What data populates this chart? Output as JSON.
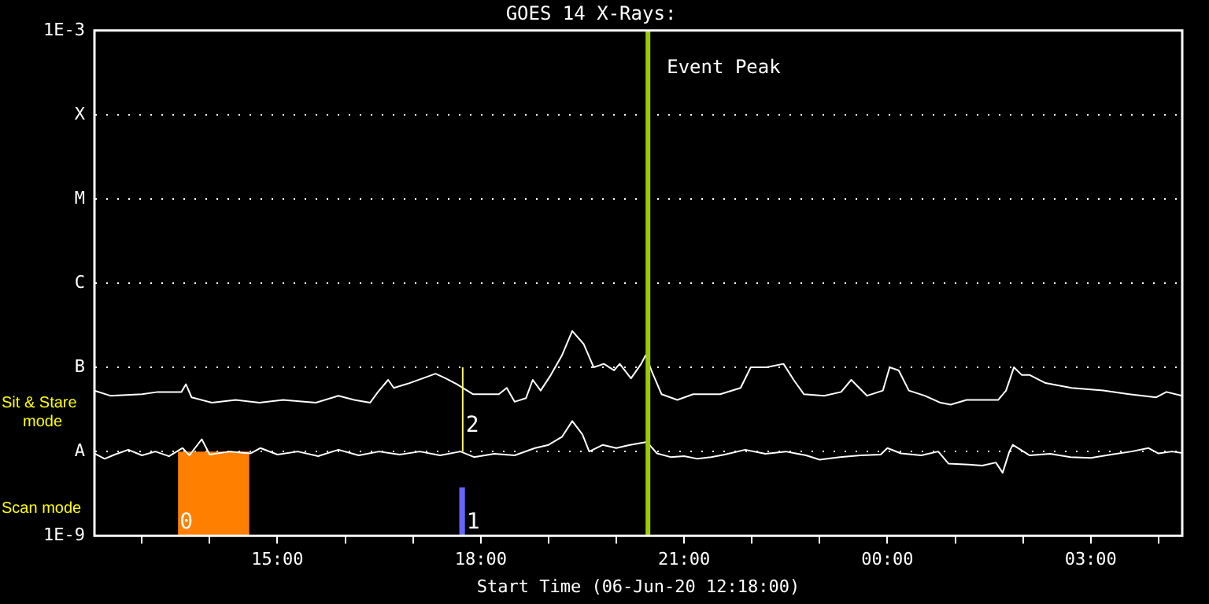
{
  "chart_data": {
    "type": "line",
    "title": "GOES 14 X-Rays:",
    "xlabel": "Start Time (06-Jun-20 12:18:00)",
    "xlim": [
      "--06-06T12:18",
      "--06-07T04:21"
    ],
    "xticks": [
      {
        "value": "--06-06T13:00",
        "label": null
      },
      {
        "value": "--06-06T14:00",
        "label": null
      },
      {
        "value": "--06-06T15:00",
        "label": "15:00"
      },
      {
        "value": "--06-06T16:00",
        "label": null
      },
      {
        "value": "--06-06T17:00",
        "label": null
      },
      {
        "value": "--06-06T18:00",
        "label": "18:00"
      },
      {
        "value": "--06-06T19:00",
        "label": null
      },
      {
        "value": "--06-06T20:00",
        "label": null
      },
      {
        "value": "--06-06T21:00",
        "label": "21:00"
      },
      {
        "value": "--06-06T22:00",
        "label": null
      },
      {
        "value": "--06-06T23:00",
        "label": null
      },
      {
        "value": "--06-07T00:00",
        "label": "00:00"
      },
      {
        "value": "--06-07T01:00",
        "label": null
      },
      {
        "value": "--06-07T02:00",
        "label": null
      },
      {
        "value": "--06-07T03:00",
        "label": "03:00"
      },
      {
        "value": "--06-07T04:00",
        "label": null
      }
    ],
    "ylim": [
      1e-09,
      0.001
    ],
    "log": "y",
    "yticks": [
      {
        "value": 1e-09,
        "label": "1E-9"
      },
      {
        "value": 1e-08,
        "label": "A"
      },
      {
        "value": 1e-07,
        "label": "B"
      },
      {
        "value": 1e-06,
        "label": "C"
      },
      {
        "value": 1e-05,
        "label": "M"
      },
      {
        "value": 0.0001,
        "label": "X"
      },
      {
        "value": 0.001,
        "label": "1E-3"
      }
    ],
    "grid": "y",
    "legend": false,
    "series": [
      {
        "color": "#ffffff",
        "x": [
          "--06-06T12:18",
          "--06-06T12:32",
          "--06-06T13:00",
          "--06-06T13:14",
          "--06-06T13:35",
          "--06-06T13:39",
          "--06-06T13:44",
          "--06-06T14:02",
          "--06-06T14:23",
          "--06-06T14:44",
          "--06-06T15:05",
          "--06-06T15:34",
          "--06-06T15:54",
          "--06-06T16:08",
          "--06-06T16:22",
          "--06-06T16:29",
          "--06-06T16:38",
          "--06-06T16:43",
          "--06-06T16:57",
          "--06-06T17:20",
          "--06-06T17:29",
          "--06-06T17:39",
          "--06-06T17:44",
          "--06-06T17:53",
          "--06-06T18:16",
          "--06-06T18:23",
          "--06-06T18:30",
          "--06-06T18:40",
          "--06-06T18:46",
          "--06-06T18:53",
          "--06-06T19:02",
          "--06-06T19:12",
          "--06-06T19:21",
          "--06-06T19:31",
          "--06-06T19:40",
          "--06-06T19:49",
          "--06-06T19:58",
          "--06-06T20:03",
          "--06-06T20:13",
          "--06-06T20:22",
          "--06-06T20:26",
          "--06-06T20:31",
          "--06-06T20:40",
          "--06-06T20:54",
          "--06-06T21:08",
          "--06-06T21:32",
          "--06-06T21:50",
          "--06-06T21:59",
          "--06-06T22:13",
          "--06-06T22:28",
          "--06-06T22:37",
          "--06-06T22:46",
          "--06-06T23:04",
          "--06-06T23:19",
          "--06-06T23:28",
          "--06-06T23:42",
          "--06-06T23:56",
          "--06-07T00:02",
          "--06-07T00:10",
          "--06-07T00:19",
          "--06-07T00:33",
          "--06-07T00:47",
          "--06-07T00:56",
          "--06-07T01:10",
          "--06-07T01:38",
          "--06-07T01:45",
          "--06-07T01:52",
          "--06-07T01:59",
          "--06-07T02:06",
          "--06-07T02:20",
          "--06-07T02:43",
          "--06-07T03:11",
          "--06-07T03:34",
          "--06-07T03:58",
          "--06-07T04:07",
          "--06-07T04:21"
        ],
        "values": [
          5.3e-08,
          4.6e-08,
          4.8e-08,
          5.1e-08,
          5.1e-08,
          6.3e-08,
          4.4e-08,
          3.8e-08,
          4.1e-08,
          3.8e-08,
          4.1e-08,
          3.8e-08,
          4.6e-08,
          4.1e-08,
          3.8e-08,
          5.1e-08,
          7.1e-08,
          5.7e-08,
          6.5e-08,
          8.4e-08,
          7.4e-08,
          6.3e-08,
          5.7e-08,
          4.8e-08,
          4.8e-08,
          5.7e-08,
          3.9e-08,
          4.3e-08,
          7.1e-08,
          5.3e-08,
          8.1e-08,
          1.4e-07,
          2.7e-07,
          1.9e-07,
          1e-07,
          1.1e-07,
          9.2e-08,
          1.1e-07,
          7.4e-08,
          1.1e-07,
          1.4e-07,
          9.2e-08,
          4.8e-08,
          4.1e-08,
          4.8e-08,
          4.8e-08,
          5.7e-08,
          1e-07,
          1e-07,
          1.1e-07,
          7.1e-08,
          4.8e-08,
          4.6e-08,
          5.1e-08,
          7.1e-08,
          4.6e-08,
          5.3e-08,
          1e-07,
          9.2e-08,
          5.3e-08,
          4.6e-08,
          3.8e-08,
          3.6e-08,
          4.1e-08,
          4.1e-08,
          5.3e-08,
          1e-07,
          8.1e-08,
          8.1e-08,
          6.5e-08,
          5.7e-08,
          5.3e-08,
          4.8e-08,
          4.4e-08,
          5.1e-08,
          4.6e-08
        ]
      },
      {
        "color": "#ffffff",
        "x": [
          "--06-06T12:18",
          "--06-06T12:27",
          "--06-06T12:36",
          "--06-06T12:48",
          "--06-06T13:00",
          "--06-06T13:12",
          "--06-06T13:24",
          "--06-06T13:36",
          "--06-06T13:42",
          "--06-06T13:53",
          "--06-06T14:00",
          "--06-06T14:18",
          "--06-06T14:36",
          "--06-06T14:45",
          "--06-06T15:00",
          "--06-06T15:18",
          "--06-06T15:36",
          "--06-06T15:54",
          "--06-06T16:12",
          "--06-06T16:30",
          "--06-06T16:48",
          "--06-06T17:06",
          "--06-06T17:24",
          "--06-06T17:42",
          "--06-06T17:54",
          "--06-06T18:12",
          "--06-06T18:30",
          "--06-06T18:48",
          "--06-06T19:00",
          "--06-06T19:12",
          "--06-06T19:21",
          "--06-06T19:30",
          "--06-06T19:36",
          "--06-06T19:48",
          "--06-06T20:00",
          "--06-06T20:12",
          "--06-06T20:27",
          "--06-06T20:36",
          "--06-06T20:48",
          "--06-06T21:00",
          "--06-06T21:12",
          "--06-06T21:24",
          "--06-06T21:36",
          "--06-06T21:54",
          "--06-06T22:12",
          "--06-06T22:30",
          "--06-06T22:48",
          "--06-06T23:00",
          "--06-06T23:18",
          "--06-06T23:36",
          "--06-06T23:54",
          "--06-07T00:00",
          "--06-07T00:12",
          "--06-07T00:30",
          "--06-07T00:45",
          "--06-07T00:54",
          "--06-07T01:12",
          "--06-07T01:24",
          "--06-07T01:36",
          "--06-07T01:42",
          "--06-07T01:48",
          "--06-07T01:51",
          "--06-07T02:06",
          "--06-07T02:24",
          "--06-07T02:42",
          "--06-07T03:00",
          "--06-07T03:18",
          "--06-07T03:36",
          "--06-07T03:51",
          "--06-07T04:00",
          "--06-07T04:12",
          "--06-07T04:21"
        ],
        "values": [
          9.5e-09,
          8.2e-09,
          9.2e-09,
          1.05e-08,
          9e-09,
          1e-08,
          8.8e-09,
          1.1e-08,
          9e-09,
          1.4e-08,
          9.2e-09,
          1e-08,
          9.5e-09,
          1.1e-08,
          9.2e-09,
          1e-08,
          8.8e-09,
          1.05e-08,
          9e-09,
          1e-08,
          9.2e-09,
          1e-08,
          9e-09,
          1e-08,
          8.6e-09,
          9.4e-09,
          9e-09,
          1.1e-08,
          1.2e-08,
          1.5e-08,
          2.3e-08,
          1.6e-08,
          1e-08,
          1.2e-08,
          1.1e-08,
          1.2e-08,
          1.3e-08,
          9.5e-09,
          8.6e-09,
          8.8e-09,
          8.2e-09,
          8.6e-09,
          9.2e-09,
          1.05e-08,
          9.4e-09,
          1e-08,
          9e-09,
          8e-09,
          8.6e-09,
          9e-09,
          9.2e-09,
          1.1e-08,
          9.5e-09,
          9e-09,
          1e-08,
          7.2e-09,
          7e-09,
          6.8e-09,
          7.4e-09,
          5.6e-09,
          1e-08,
          1.2e-08,
          9e-09,
          9.4e-09,
          8.6e-09,
          8.4e-09,
          9.2e-09,
          1e-08,
          1.1e-08,
          9.5e-09,
          1e-08,
          9.6e-09
        ]
      }
    ],
    "ref_lines": [
      {
        "axis": "x",
        "value": "--06-06T20:28",
        "label": "Event Peak",
        "color": "#99cc00"
      },
      {
        "axis": "x",
        "value": "--06-06T17:44",
        "color": "#ffff66"
      }
    ],
    "bands": [
      {
        "axis": "x",
        "from": "--06-06T13:32",
        "to": "--06-06T14:35",
        "label": "0",
        "color": "#ff8000"
      },
      {
        "axis": "x",
        "from": "--06-06T17:41",
        "to": "--06-06T17:46",
        "label": "1",
        "color": "#6666ff"
      }
    ],
    "annotations": [
      "Sit & Stare mode",
      "Scan mode",
      {
        "text": "2",
        "x": "--06-06T17:44",
        "y": 2e-08
      }
    ]
  }
}
